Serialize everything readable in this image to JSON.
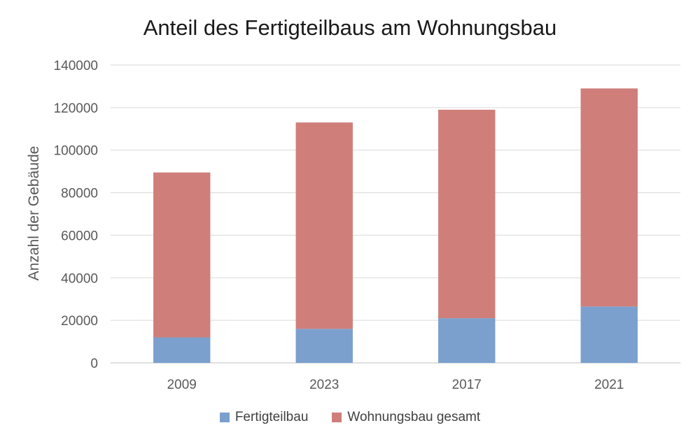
{
  "chart_data": {
    "type": "bar",
    "stacked": true,
    "title": "Anteil des Fertigteilbaus am Wohnungsbau",
    "xlabel": "",
    "ylabel": "Anzahl der Gebäude",
    "categories": [
      "2009",
      "2023",
      "2017",
      "2021"
    ],
    "series": [
      {
        "name": "Fertigteilbau",
        "values": [
          12000,
          16000,
          21000,
          26500
        ],
        "color": "#7ba0cd"
      },
      {
        "name": "Wohnungsbau gesamt",
        "values": [
          77500,
          97000,
          98000,
          102500
        ],
        "color": "#d07e7a"
      }
    ],
    "ylim": [
      0,
      140000
    ],
    "yticks": [
      "0",
      "20000",
      "40000",
      "60000",
      "80000",
      "100000",
      "120000",
      "140000"
    ],
    "grid": true,
    "legend": "bottom"
  }
}
